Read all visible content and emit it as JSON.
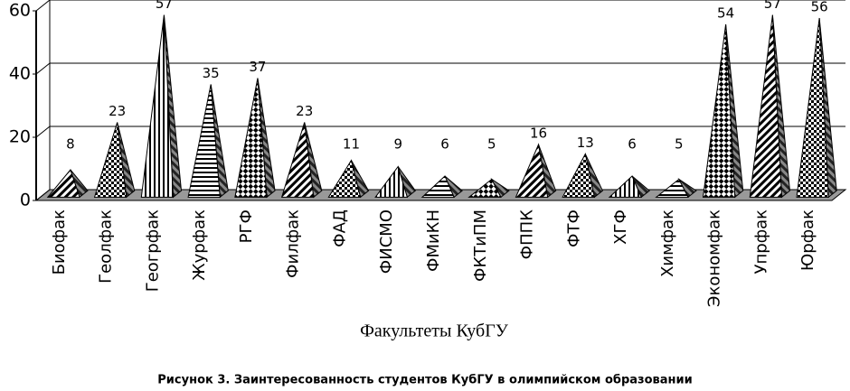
{
  "chart_data": {
    "type": "pyramid3d",
    "categories": [
      "Биофак",
      "Геолфак",
      "Геогрфак",
      "Журфак",
      "РГФ",
      "Филфак",
      "ФАД",
      "ФИСМО",
      "ФМиКН",
      "ФКТиПМ",
      "ФППК",
      "ФТФ",
      "ХГФ",
      "Химфак",
      "Экономфак",
      "Упрфак",
      "Юрфак"
    ],
    "values": [
      8,
      23,
      57,
      35,
      37,
      23,
      11,
      9,
      6,
      5,
      16,
      13,
      6,
      5,
      54,
      57,
      56
    ],
    "ylim": [
      0,
      60
    ],
    "yticks": [
      0,
      20,
      40,
      60
    ],
    "grid": true,
    "x_label": "Факультеты КубГУ",
    "caption": "Рисунок 3. Заинтересованность студентов КубГУ в олимпийском образовании"
  }
}
